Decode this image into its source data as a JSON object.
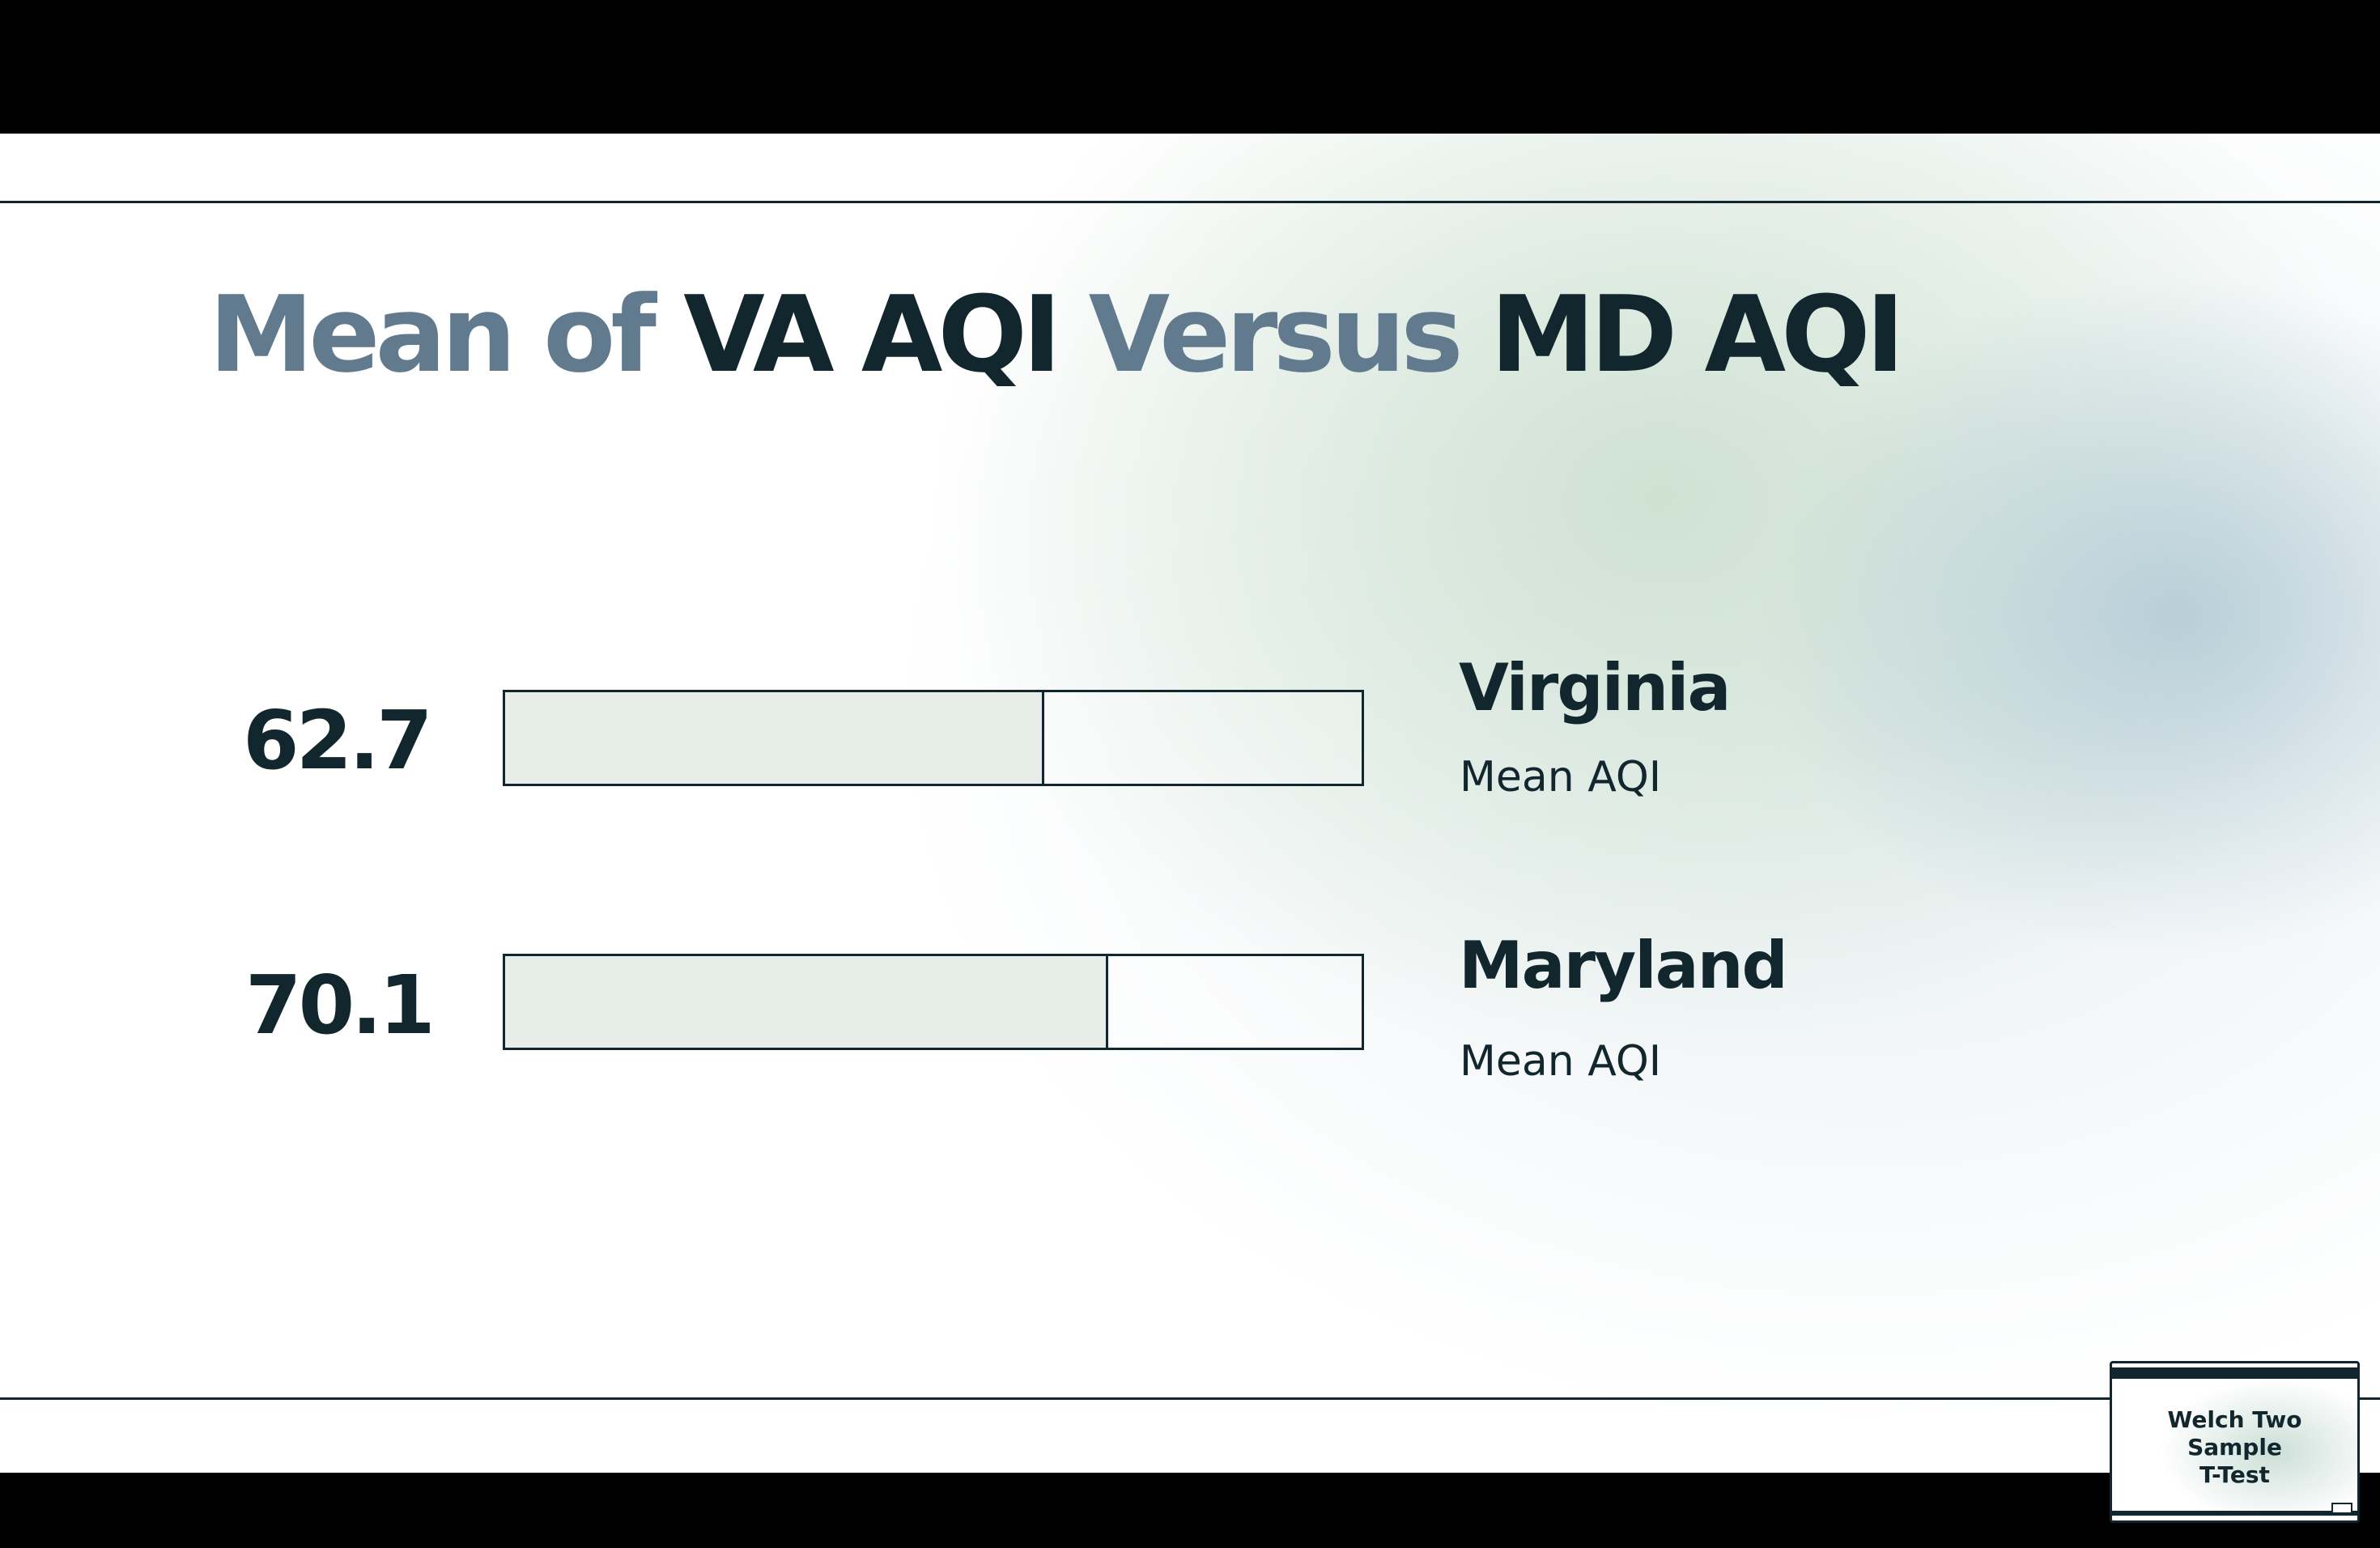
{
  "slide": {
    "title": {
      "part1": "Mean of ",
      "part2": "VA AQI",
      "part3": " Versus ",
      "part4": "MD AQI"
    }
  },
  "chart_data": {
    "type": "bar",
    "orientation": "horizontal",
    "categories": [
      "Virginia",
      "Maryland"
    ],
    "values": [
      62.7,
      70.1
    ],
    "value_labels": [
      "62.7",
      "70.1"
    ],
    "sublabel": "Mean AQI",
    "xlim": [
      0,
      100
    ]
  },
  "thumbnail": {
    "title": "Welch Two\nSample\nT-Test"
  }
}
